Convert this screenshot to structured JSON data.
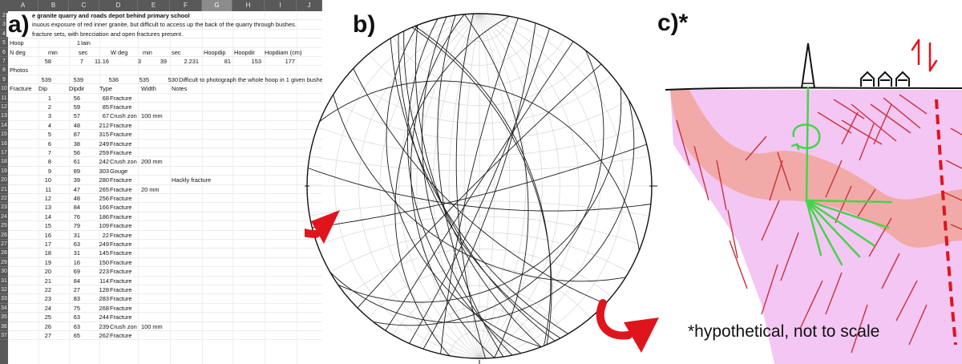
{
  "panels": {
    "a": "a)",
    "b": "b)",
    "c": "c)*"
  },
  "sheet": {
    "columns": [
      "A",
      "B",
      "C",
      "D",
      "E",
      "F",
      "G",
      "H",
      "I",
      "J"
    ],
    "selected_column": "G",
    "title": "e granite quarry and roads depot behind primary school",
    "line2": "inuous exposure of red inner granite, but difficult to access up the back of the quarry through bushes.",
    "line3": "fracture sets, with brecciation and open fractures present.",
    "hoop_label": "Hoop",
    "hoop_value": "1",
    "hoop_name": "Iain",
    "hoop_headers": [
      "N deg",
      "min",
      "sec",
      "W deg",
      "min",
      "sec",
      "Hoopdip",
      "Hoopdir",
      "Hopdiam (cm)"
    ],
    "hoop_values": [
      "58",
      "7",
      "11.16",
      "3",
      "39",
      "2.231",
      "81",
      "153",
      "177"
    ],
    "photos_label": "Photos",
    "photos_values": [
      "539",
      "539",
      "536",
      "535",
      "530"
    ],
    "photos_note": "Difficult to photograph the whole hoop in 1 given bushes",
    "table_headers": [
      "Fracture",
      "Dip",
      "Dipdir",
      "Type",
      "Width",
      "Notes"
    ],
    "rows": [
      [
        "1",
        "56",
        "68",
        "Fracture",
        "",
        ""
      ],
      [
        "2",
        "59",
        "85",
        "Fracture",
        "",
        ""
      ],
      [
        "3",
        "57",
        "67",
        "Crush zon",
        "100 mm",
        ""
      ],
      [
        "4",
        "48",
        "212",
        "Fracture",
        "",
        ""
      ],
      [
        "5",
        "87",
        "315",
        "Fracture",
        "",
        ""
      ],
      [
        "6",
        "38",
        "249",
        "Fracture",
        "",
        ""
      ],
      [
        "7",
        "56",
        "259",
        "Fracture",
        "",
        ""
      ],
      [
        "8",
        "61",
        "242",
        "Crush zon",
        "200 mm",
        ""
      ],
      [
        "9",
        "89",
        "303",
        "Gouge",
        "",
        ""
      ],
      [
        "10",
        "39",
        "280",
        "Fracture",
        "",
        "Hackly fracture"
      ],
      [
        "11",
        "47",
        "265",
        "Fracture",
        "20 mm",
        ""
      ],
      [
        "12",
        "48",
        "256",
        "Fracture",
        "",
        ""
      ],
      [
        "13",
        "84",
        "166",
        "Fracture",
        "",
        ""
      ],
      [
        "14",
        "76",
        "186",
        "Fracture",
        "",
        ""
      ],
      [
        "15",
        "79",
        "109",
        "Fracture",
        "",
        ""
      ],
      [
        "16",
        "31",
        "22",
        "Fracture",
        "",
        ""
      ],
      [
        "17",
        "63",
        "249",
        "Fracture",
        "",
        ""
      ],
      [
        "18",
        "31",
        "145",
        "Fracture",
        "",
        ""
      ],
      [
        "19",
        "16",
        "150",
        "Fracture",
        "",
        ""
      ],
      [
        "20",
        "69",
        "223",
        "Fracture",
        "",
        ""
      ],
      [
        "21",
        "84",
        "114",
        "Fracture",
        "",
        ""
      ],
      [
        "22",
        "27",
        "128",
        "Fracture",
        "",
        ""
      ],
      [
        "23",
        "83",
        "283",
        "Fracture",
        "",
        ""
      ],
      [
        "24",
        "75",
        "268",
        "Fracture",
        "",
        ""
      ],
      [
        "25",
        "63",
        "244",
        "Fracture",
        "",
        ""
      ],
      [
        "26",
        "63",
        "239",
        "Crush zon",
        "100 mm",
        ""
      ],
      [
        "27",
        "65",
        "262",
        "Fracture",
        "",
        ""
      ]
    ]
  },
  "stereonet": {
    "planes": [
      {
        "dip": 56,
        "dipdir": 68
      },
      {
        "dip": 59,
        "dipdir": 85
      },
      {
        "dip": 57,
        "dipdir": 67
      },
      {
        "dip": 48,
        "dipdir": 212
      },
      {
        "dip": 87,
        "dipdir": 315
      },
      {
        "dip": 38,
        "dipdir": 249
      },
      {
        "dip": 56,
        "dipdir": 259
      },
      {
        "dip": 61,
        "dipdir": 242
      },
      {
        "dip": 89,
        "dipdir": 303
      },
      {
        "dip": 39,
        "dipdir": 280
      },
      {
        "dip": 47,
        "dipdir": 265
      },
      {
        "dip": 48,
        "dipdir": 256
      },
      {
        "dip": 84,
        "dipdir": 166
      },
      {
        "dip": 76,
        "dipdir": 186
      },
      {
        "dip": 79,
        "dipdir": 109
      },
      {
        "dip": 31,
        "dipdir": 22
      },
      {
        "dip": 63,
        "dipdir": 249
      },
      {
        "dip": 31,
        "dipdir": 145
      },
      {
        "dip": 16,
        "dipdir": 150
      },
      {
        "dip": 69,
        "dipdir": 223
      },
      {
        "dip": 84,
        "dipdir": 114
      },
      {
        "dip": 27,
        "dipdir": 128
      },
      {
        "dip": 83,
        "dipdir": 283
      },
      {
        "dip": 75,
        "dipdir": 268
      },
      {
        "dip": 63,
        "dipdir": 244
      },
      {
        "dip": 63,
        "dipdir": 239
      },
      {
        "dip": 65,
        "dipdir": 262
      }
    ]
  },
  "sketch": {
    "note": "*hypothetical, not to scale"
  },
  "colors": {
    "arrow_red": "#e0141c",
    "granite_pink": "#f4c6f4",
    "zone_salmon": "#f2aaa8",
    "fracture_red": "#c8323a",
    "fracture_green": "#44d44a"
  }
}
